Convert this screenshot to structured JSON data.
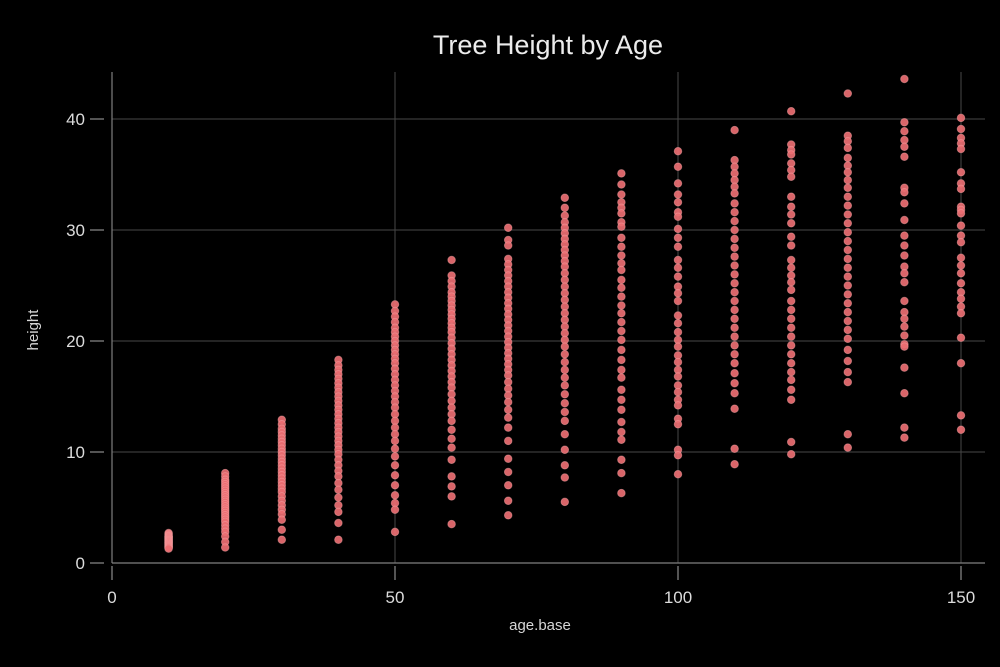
{
  "title": "Tree Height by Age",
  "chart_data": {
    "type": "scatter",
    "title": "Tree Height by Age",
    "xlabel": "age.base",
    "ylabel": "height",
    "xlim": [
      0,
      154
    ],
    "ylim": [
      0,
      44.2
    ],
    "x_ticks": [
      0,
      50,
      100,
      150
    ],
    "y_ticks": [
      0,
      10,
      20,
      30,
      40
    ],
    "x_gridlines": [
      0,
      50,
      100,
      150
    ],
    "y_gridlines": [
      0,
      10,
      20,
      30,
      40
    ],
    "grid": true,
    "legend_position": "none",
    "background_color": "#000000",
    "point_color": "#ec6e72",
    "point_stroke_color": "#f8a3a6",
    "grid_color": "#474747",
    "axis_color": "#7f7f7f",
    "text_color": "#dcdcdc",
    "series": [
      {
        "age": 10,
        "heights": [
          2.7,
          2.6,
          2.5,
          2.4,
          2.4,
          2.3,
          2.3,
          2.2,
          2.2,
          2.1,
          2.1,
          2.0,
          2.0,
          1.9,
          1.9,
          1.8,
          1.8,
          1.7,
          1.7,
          1.6,
          1.6,
          1.5,
          1.5,
          1.4,
          1.4,
          1.3
        ]
      },
      {
        "age": 20,
        "heights": [
          8.1,
          7.8,
          7.5,
          7.3,
          7.1,
          6.9,
          6.7,
          6.5,
          6.3,
          6.1,
          5.9,
          5.7,
          5.5,
          5.3,
          5.1,
          4.9,
          4.7,
          4.5,
          4.3,
          4.1,
          3.9,
          3.7,
          3.4,
          3.1,
          2.8,
          2.4,
          1.9,
          1.4
        ]
      },
      {
        "age": 30,
        "heights": [
          12.9,
          12.5,
          12.1,
          11.8,
          11.5,
          11.2,
          10.9,
          10.6,
          10.3,
          10.0,
          9.7,
          9.4,
          9.1,
          8.8,
          8.5,
          8.2,
          7.9,
          7.6,
          7.3,
          7.0,
          6.7,
          6.4,
          6.0,
          5.6,
          5.2,
          4.8,
          4.4,
          3.9,
          3.0,
          2.1
        ]
      },
      {
        "age": 40,
        "heights": [
          18.3,
          17.8,
          17.4,
          17.0,
          16.6,
          16.2,
          15.8,
          15.4,
          15.0,
          14.6,
          14.2,
          13.8,
          13.4,
          13.0,
          12.6,
          12.2,
          11.8,
          11.4,
          11.0,
          10.6,
          10.2,
          9.8,
          9.3,
          8.8,
          8.3,
          7.8,
          7.2,
          6.6,
          5.9,
          5.2,
          4.6,
          3.6,
          2.1
        ]
      },
      {
        "age": 50,
        "heights": [
          23.3,
          22.7,
          22.2,
          21.7,
          21.2,
          20.8,
          20.4,
          20.0,
          19.6,
          19.2,
          18.8,
          18.4,
          18.0,
          17.5,
          17.0,
          16.5,
          16.0,
          15.5,
          15.0,
          14.5,
          14.0,
          13.4,
          12.8,
          12.2,
          11.6,
          11.0,
          10.3,
          9.6,
          8.8,
          7.9,
          7.0,
          6.1,
          5.4,
          4.8,
          2.8
        ]
      },
      {
        "age": 60,
        "heights": [
          27.3,
          25.9,
          25.4,
          24.9,
          24.4,
          24.0,
          23.6,
          23.2,
          22.8,
          22.4,
          22.0,
          21.6,
          21.2,
          20.8,
          20.3,
          19.8,
          19.3,
          18.8,
          18.3,
          17.8,
          17.3,
          16.8,
          16.3,
          15.8,
          15.2,
          14.6,
          14.0,
          13.4,
          12.8,
          12.0,
          11.2,
          10.4,
          9.3,
          7.8,
          6.9,
          6.0,
          3.5
        ]
      },
      {
        "age": 70,
        "heights": [
          30.2,
          29.1,
          28.6,
          27.4,
          26.9,
          26.4,
          25.9,
          25.4,
          24.9,
          24.4,
          23.9,
          23.4,
          22.9,
          22.4,
          21.9,
          21.4,
          20.9,
          20.4,
          19.9,
          19.4,
          18.9,
          18.4,
          17.9,
          17.4,
          16.9,
          16.3,
          15.7,
          15.1,
          14.5,
          13.8,
          13.1,
          12.2,
          11.0,
          9.4,
          8.2,
          7.0,
          5.6,
          4.3
        ]
      },
      {
        "age": 80,
        "heights": [
          32.9,
          32.0,
          31.3,
          30.7,
          30.2,
          29.7,
          29.2,
          28.7,
          28.2,
          27.7,
          27.2,
          26.7,
          26.1,
          25.5,
          24.9,
          24.3,
          23.7,
          23.1,
          22.5,
          21.9,
          21.3,
          20.7,
          20.1,
          19.5,
          18.8,
          18.1,
          17.4,
          16.7,
          16.0,
          15.2,
          14.4,
          13.6,
          12.8,
          11.6,
          10.2,
          8.8,
          7.7,
          5.5
        ]
      },
      {
        "age": 90,
        "heights": [
          35.1,
          34.1,
          33.2,
          32.5,
          32.0,
          31.5,
          30.7,
          30.3,
          29.3,
          28.5,
          27.7,
          27.0,
          26.4,
          25.5,
          24.8,
          24.0,
          23.2,
          22.5,
          21.7,
          20.9,
          20.1,
          19.2,
          18.3,
          17.4,
          16.7,
          15.6,
          14.7,
          13.8,
          12.7,
          11.8,
          11.1,
          9.3,
          8.1,
          6.3
        ]
      },
      {
        "age": 100,
        "heights": [
          37.1,
          35.7,
          34.2,
          33.2,
          32.5,
          31.6,
          31.2,
          30.1,
          29.3,
          28.5,
          27.3,
          26.6,
          25.8,
          24.9,
          24.3,
          23.6,
          22.3,
          21.6,
          20.8,
          20.1,
          19.5,
          18.7,
          18.1,
          17.4,
          16.8,
          16.0,
          15.4,
          14.7,
          14.2,
          13.0,
          12.5,
          10.2,
          9.7,
          8.0
        ]
      },
      {
        "age": 110,
        "heights": [
          39.0,
          36.3,
          35.7,
          35.1,
          34.5,
          33.9,
          33.3,
          32.4,
          31.6,
          30.8,
          30.0,
          29.2,
          28.4,
          27.6,
          26.8,
          26.0,
          25.2,
          24.4,
          23.6,
          22.8,
          22.0,
          21.2,
          20.4,
          19.6,
          18.8,
          18.0,
          17.1,
          16.2,
          15.3,
          13.9,
          10.3,
          8.9
        ]
      },
      {
        "age": 120,
        "heights": [
          40.7,
          37.7,
          37.2,
          36.8,
          36.0,
          35.4,
          34.8,
          33.0,
          32.1,
          31.4,
          30.6,
          29.4,
          28.6,
          27.3,
          26.6,
          25.9,
          25.3,
          24.6,
          23.6,
          22.8,
          22.0,
          21.2,
          20.4,
          19.6,
          18.8,
          18.0,
          17.2,
          16.5,
          15.6,
          14.7,
          10.9,
          9.8
        ]
      },
      {
        "age": 130,
        "heights": [
          42.3,
          38.5,
          38.0,
          37.4,
          36.5,
          35.8,
          35.2,
          34.5,
          33.8,
          33.0,
          32.2,
          31.4,
          30.6,
          29.8,
          29.0,
          28.2,
          27.4,
          26.6,
          25.8,
          25.0,
          24.2,
          23.4,
          22.6,
          21.8,
          21.0,
          20.2,
          19.2,
          18.2,
          17.2,
          16.3,
          11.6,
          10.4
        ]
      },
      {
        "age": 140,
        "heights": [
          43.6,
          39.7,
          38.9,
          38.1,
          37.5,
          36.6,
          33.8,
          33.4,
          32.4,
          30.9,
          29.5,
          28.6,
          27.7,
          26.7,
          26.1,
          25.3,
          23.6,
          22.6,
          22.0,
          21.3,
          20.5,
          19.7,
          19.5,
          17.6,
          15.3,
          12.2,
          11.3
        ]
      },
      {
        "age": 150,
        "heights": [
          40.1,
          39.1,
          38.3,
          37.8,
          37.3,
          35.2,
          34.2,
          33.7,
          32.1,
          31.8,
          31.5,
          30.4,
          29.5,
          28.9,
          27.5,
          26.8,
          26.1,
          25.2,
          24.4,
          23.8,
          23.1,
          22.5,
          20.3,
          18.0,
          13.3,
          12.0
        ]
      }
    ]
  }
}
